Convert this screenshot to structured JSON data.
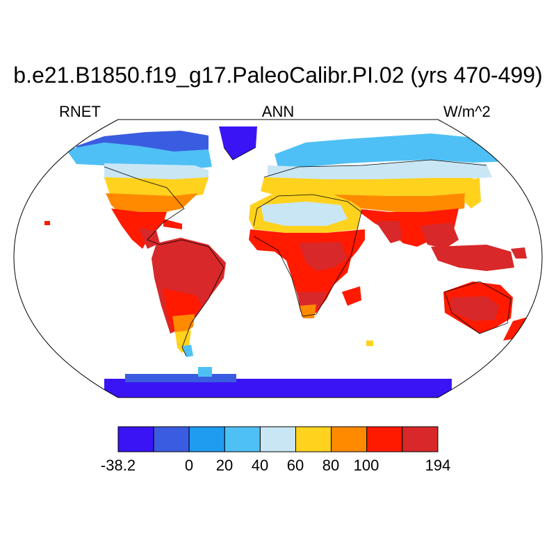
{
  "title": "b.e21.B1850.f19_g17.PaleoCalibr.PI.02 (yrs 470-499)",
  "left_label": "RNET",
  "center_label": "ANN",
  "right_label": "W/m^2",
  "colorbar": {
    "colors": [
      "#3b14f5",
      "#3a5ce0",
      "#1f9bf0",
      "#4fc0f5",
      "#c9e6f5",
      "#ffd21e",
      "#ff8a00",
      "#ff1a00",
      "#d8282a"
    ],
    "tick_labels": [
      "-38.2",
      "0",
      "20",
      "40",
      "60",
      "80",
      "100",
      "194"
    ]
  },
  "colors": {
    "ocean": "#ffffff",
    "outline": "#000000"
  }
}
